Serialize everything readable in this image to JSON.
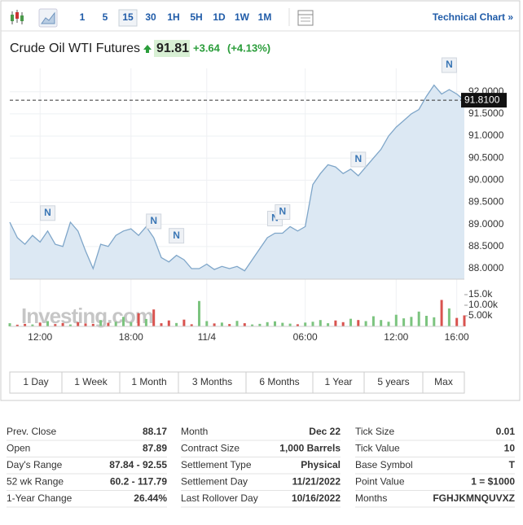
{
  "toolbar": {
    "intervals": [
      "1",
      "5",
      "15",
      "30",
      "1H",
      "5H",
      "1D",
      "1W",
      "1M"
    ],
    "selected": "15",
    "link": "Technical Chart »"
  },
  "header": {
    "title": "Crude Oil WTI Futures",
    "price": "91.81",
    "change": "+3.64",
    "change_percent": "(+4.13%)"
  },
  "watermark": "Investing.com",
  "chart_data": [
    {
      "type": "line",
      "color": "#7fa6c9",
      "fill": "#dce8f3",
      "categories": [
        null,
        null,
        null,
        null,
        "12:00",
        null,
        null,
        null,
        null,
        null,
        null,
        null,
        null,
        null,
        null,
        null,
        "18:00",
        null,
        null,
        null,
        null,
        null,
        null,
        null,
        null,
        null,
        "11/4",
        null,
        null,
        null,
        null,
        null,
        null,
        null,
        null,
        null,
        null,
        null,
        null,
        "06:00",
        null,
        null,
        null,
        null,
        null,
        null,
        null,
        null,
        null,
        null,
        null,
        "12:00",
        null,
        null,
        null,
        null,
        null,
        null,
        null,
        "16:00",
        null
      ],
      "values": [
        89.05,
        88.7,
        88.55,
        88.75,
        88.6,
        88.85,
        88.55,
        88.5,
        89.05,
        88.85,
        88.4,
        88.0,
        88.55,
        88.5,
        88.75,
        88.85,
        88.9,
        88.75,
        88.95,
        88.7,
        88.25,
        88.15,
        88.3,
        88.2,
        88.0,
        88.0,
        88.1,
        87.98,
        88.05,
        88.0,
        88.05,
        87.95,
        88.2,
        88.45,
        88.7,
        88.8,
        88.8,
        88.95,
        88.85,
        88.95,
        89.9,
        90.15,
        90.35,
        90.3,
        90.15,
        90.25,
        90.1,
        90.3,
        90.5,
        90.7,
        91.0,
        91.2,
        91.35,
        91.5,
        91.6,
        91.9,
        92.15,
        91.95,
        92.05,
        91.95,
        91.81
      ],
      "ylim": [
        87.76,
        92.53
      ],
      "yticks": [
        {
          "value": 88,
          "label": "88.0000"
        },
        {
          "value": 88.5,
          "label": "88.5000"
        },
        {
          "value": 89,
          "label": "89.0000"
        },
        {
          "value": 89.5,
          "label": "89.5000"
        },
        {
          "value": 90,
          "label": "90.0000"
        },
        {
          "value": 90.5,
          "label": "90.5000"
        },
        {
          "value": 91,
          "label": "91.0000"
        },
        {
          "value": 91.5,
          "label": "91.5000"
        },
        {
          "value": 92,
          "label": "92.0000"
        }
      ],
      "last_value": 91.81,
      "last_value_label": "91.8100",
      "news_markers": [
        "N",
        "N",
        "N",
        "N",
        "N",
        "N",
        "N"
      ],
      "grid": true
    },
    {
      "type": "bar",
      "up_color": "#7cc47f",
      "down_color": "#d9534f",
      "values": [
        1500,
        800,
        1200,
        900,
        1800,
        2500,
        1100,
        1600,
        900,
        2000,
        1400,
        1200,
        3000,
        1700,
        2200,
        4500,
        2000,
        6200,
        3500,
        8000,
        1500,
        2800,
        1600,
        3200,
        1000,
        12000,
        2500,
        1400,
        1800,
        1100,
        2600,
        1500,
        900,
        1200,
        2000,
        2400,
        1700,
        1300,
        1000,
        1800,
        2200,
        3000,
        1500,
        2800,
        2000,
        3600,
        3000,
        2500,
        4800,
        3000,
        2200,
        5500,
        3800,
        4500,
        7000,
        5000,
        4300,
        12500,
        8500,
        4000,
        5200
      ],
      "ylim": [
        0,
        15000
      ],
      "yticks": [
        {
          "value": 5000,
          "label": "5.00k"
        },
        {
          "value": 10000,
          "label": "10.00k"
        },
        {
          "value": 15000,
          "label": "15.0k"
        }
      ]
    }
  ],
  "ranges": [
    "1 Day",
    "1 Week",
    "1 Month",
    "3 Months",
    "6 Months",
    "1 Year",
    "5 years",
    "Max"
  ],
  "stats": [
    [
      [
        "Prev. Close",
        "88.17"
      ],
      [
        "Open",
        "87.89"
      ],
      [
        "Day's Range",
        "87.84 - 92.55"
      ],
      [
        "52 wk Range",
        "60.2 - 117.79"
      ],
      [
        "1-Year Change",
        "26.44%"
      ]
    ],
    [
      [
        "Month",
        "Dec 22"
      ],
      [
        "Contract Size",
        "1,000 Barrels"
      ],
      [
        "Settlement Type",
        "Physical"
      ],
      [
        "Settlement Day",
        "11/21/2022"
      ],
      [
        "Last Rollover Day",
        "10/16/2022"
      ]
    ],
    [
      [
        "Tick Size",
        "0.01"
      ],
      [
        "Tick Value",
        "10"
      ],
      [
        "Base Symbol",
        "T"
      ],
      [
        "Point Value",
        "1 = $1000"
      ],
      [
        "Months",
        "FGHJKMNQUVXZ"
      ]
    ]
  ]
}
